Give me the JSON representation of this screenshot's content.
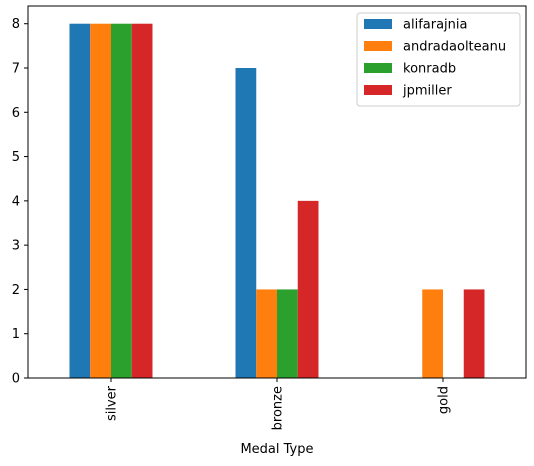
{
  "chart_data": {
    "type": "bar",
    "title": "",
    "xlabel": "Medal Type",
    "ylabel": "",
    "categories": [
      "silver",
      "bronze",
      "gold"
    ],
    "series": [
      {
        "name": "alifarajnia",
        "color": "#1f77b4",
        "values": [
          8,
          7,
          0
        ]
      },
      {
        "name": "andradaolteanu",
        "color": "#ff7f0e",
        "values": [
          8,
          2,
          2
        ]
      },
      {
        "name": "konradb",
        "color": "#2ca02c",
        "values": [
          8,
          2,
          0
        ]
      },
      {
        "name": "jpmiller",
        "color": "#d62728",
        "values": [
          8,
          4,
          2
        ]
      }
    ],
    "ylim": [
      0,
      8.4
    ],
    "yticks": [
      0,
      1,
      2,
      3,
      4,
      5,
      6,
      7,
      8
    ],
    "grid": false,
    "legend": "top-right"
  }
}
